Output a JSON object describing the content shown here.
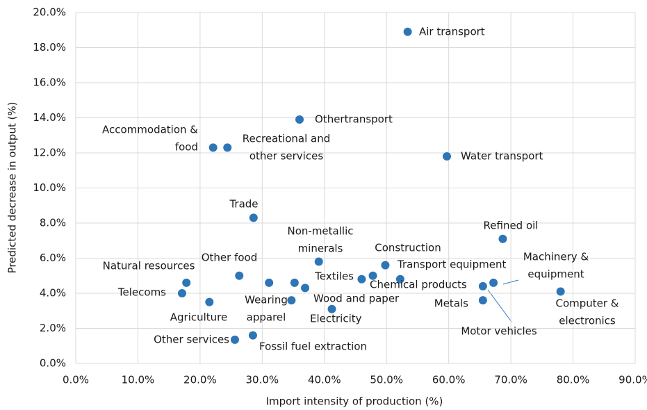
{
  "chart_data": {
    "type": "scatter",
    "x_label": "Import intensity of production (%)",
    "y_label": "Predicted decrease in output (%)",
    "color": "#2e75b6",
    "grid": true,
    "xlim": [
      0,
      90
    ],
    "ylim": [
      0,
      20
    ],
    "xticks": [
      {
        "value": 0,
        "label": "0.0%"
      },
      {
        "value": 10,
        "label": "10.0%"
      },
      {
        "value": 20,
        "label": "20.0%"
      },
      {
        "value": 30,
        "label": "30.0%"
      },
      {
        "value": 40,
        "label": "40.0%"
      },
      {
        "value": 50,
        "label": "50.0%"
      },
      {
        "value": 60,
        "label": "60.0%"
      },
      {
        "value": 70,
        "label": "70.0%"
      },
      {
        "value": 80,
        "label": "80.0%"
      },
      {
        "value": 90,
        "label": "90.0%"
      }
    ],
    "yticks": [
      {
        "value": 0,
        "label": "0.0%"
      },
      {
        "value": 2,
        "label": "2.0%"
      },
      {
        "value": 4,
        "label": "4.0%"
      },
      {
        "value": 6,
        "label": "6.0%"
      },
      {
        "value": 8,
        "label": "8.0%"
      },
      {
        "value": 10,
        "label": "10.0%"
      },
      {
        "value": 12,
        "label": "12.0%"
      },
      {
        "value": 14,
        "label": "14.0%"
      },
      {
        "value": 16,
        "label": "16.0%"
      },
      {
        "value": 18,
        "label": "18.0%"
      },
      {
        "value": 20,
        "label": "20.0%"
      }
    ],
    "x": [
      53.4,
      36.0,
      22.1,
      24.4,
      59.7,
      28.6,
      68.7,
      39.1,
      49.8,
      26.3,
      17.8,
      17.1,
      21.5,
      31.1,
      35.2,
      36.9,
      34.7,
      46.0,
      47.8,
      52.2,
      41.2,
      25.6,
      28.5,
      67.2,
      65.5,
      65.5,
      78.0
    ],
    "values": [
      18.9,
      13.9,
      12.3,
      12.3,
      11.8,
      8.3,
      7.1,
      5.8,
      5.6,
      5.0,
      4.6,
      4.0,
      3.5,
      4.6,
      4.6,
      4.3,
      3.6,
      4.8,
      5.0,
      4.8,
      3.1,
      1.35,
      1.6,
      4.6,
      4.4,
      3.6,
      4.1
    ],
    "point_labels": [
      [
        "Air transport"
      ],
      [
        "Othertransport"
      ],
      [
        "Accommodation &",
        "food"
      ],
      [
        "Recreational and",
        "other services"
      ],
      [
        "Water transport"
      ],
      [
        "Trade"
      ],
      [
        "Refined oil"
      ],
      [
        "Non-metallic",
        "minerals"
      ],
      [
        "Construction"
      ],
      [
        "Other food"
      ],
      [
        "Natural resources"
      ],
      [
        "Telecoms"
      ],
      [
        "Agriculture"
      ],
      null,
      null,
      [
        "Wood and paper"
      ],
      [
        "Wearing",
        "apparel"
      ],
      [
        "Textiles"
      ],
      [
        "Transport equipment"
      ],
      [
        "Chemical products"
      ],
      [
        "Electricity"
      ],
      [
        "Other services"
      ],
      [
        "Fossil fuel extraction"
      ],
      [
        "Machinery &",
        "equipment"
      ],
      [
        "Motor vehicles"
      ],
      [
        "Metals"
      ],
      [
        "Computer &",
        "electronics"
      ]
    ]
  }
}
